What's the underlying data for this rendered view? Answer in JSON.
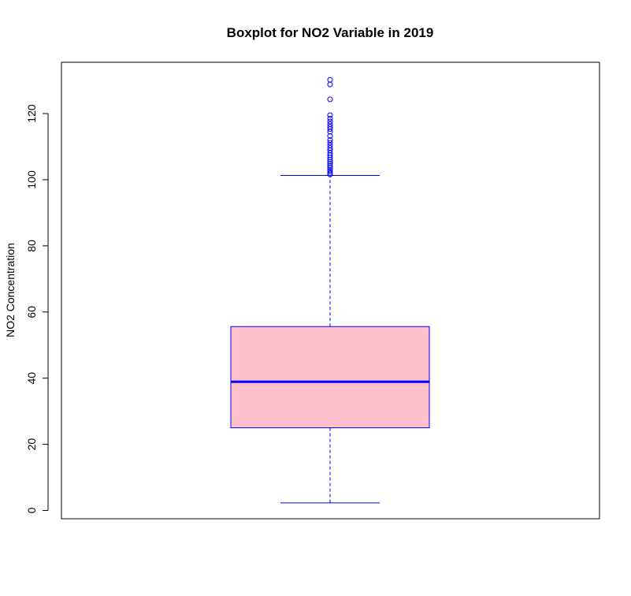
{
  "chart_data": {
    "type": "boxplot",
    "title": "Boxplot for NO2 Variable in 2019",
    "xlabel": "",
    "ylabel": "NO2 Concentration",
    "ylim": [
      -2.5,
      135.5
    ],
    "yticks": [
      0,
      20,
      40,
      60,
      80,
      100,
      120
    ],
    "grid": false,
    "stats": {
      "whisker_low": 2.3,
      "q1": 25.0,
      "median": 38.9,
      "q3": 55.6,
      "whisker_high": 101.3
    },
    "outliers": [
      101.6,
      102.0,
      102.5,
      103.0,
      103.6,
      104.2,
      104.8,
      105.4,
      106.0,
      106.7,
      107.4,
      108.1,
      108.9,
      109.6,
      110.4,
      111.2,
      112.0,
      113.2,
      114.5,
      115.3,
      116.0,
      116.8,
      117.6,
      118.5,
      119.5,
      124.3,
      128.8,
      130.2
    ],
    "colors": {
      "box_fill": "#ffc0cb",
      "box_border": "#0000ff",
      "median": "#0000ff",
      "whisker": "#0000ff",
      "outlier": "#0000ff"
    }
  }
}
